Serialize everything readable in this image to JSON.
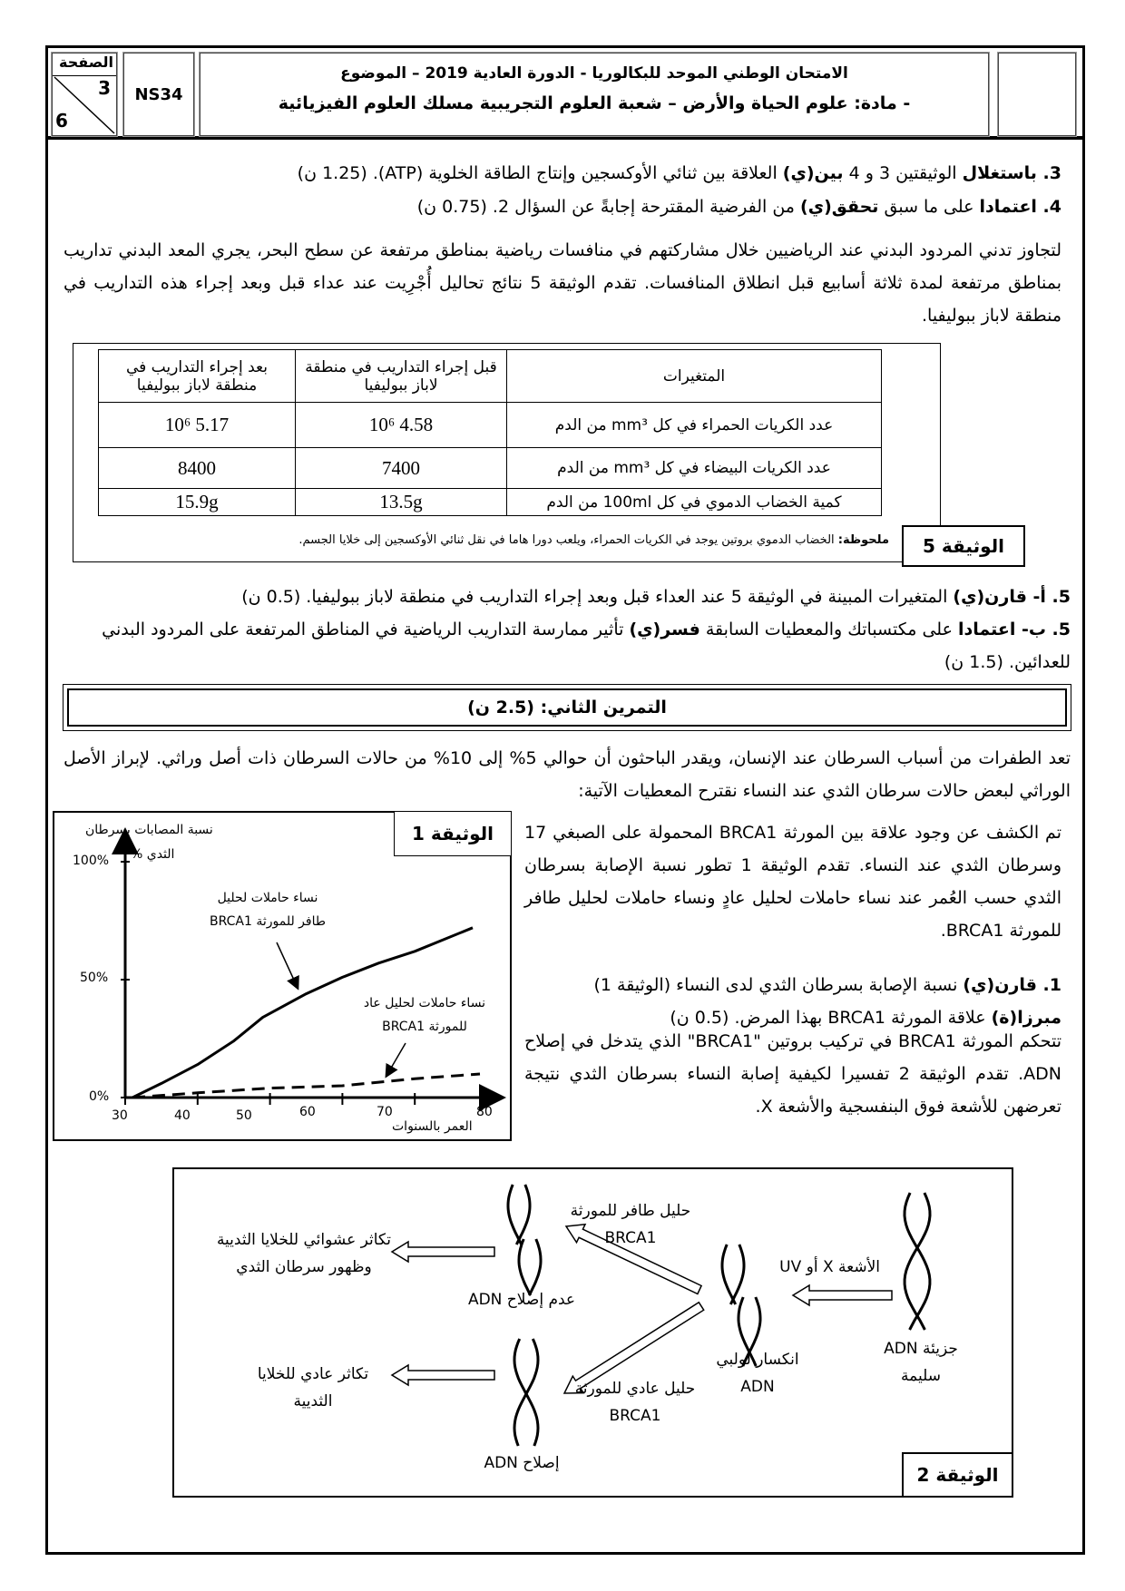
{
  "header": {
    "page_label": "الصفحة",
    "page_current": "3",
    "page_total": "6",
    "code": "NS34",
    "title_line1": "الامتحان الوطني الموحد للبكالوريا - الدورة العادية 2019 – الموضوع",
    "title_line2": "- مادة: علوم الحياة والأرض – شعبة العلوم التجريبية مسلك العلوم الفيزيائية"
  },
  "questions_top": {
    "q3": {
      "num": "3. باستغلال",
      "t1": " الوثيقتين 3 و 4 ",
      "verb": "بين(ي)",
      "t2": " العلاقة بين ثنائي الأوكسجين وإنتاج الطاقة الخلوية (ATP). (1.25 ن)"
    },
    "q4": {
      "num": "4. اعتمادا",
      "t1": " على ما سبق ",
      "verb": "تحقق(ي)",
      "t2": " من الفرضية المقترحة إجابةً عن السؤال 2. (0.75 ن)"
    }
  },
  "intro_doc5": "لتجاوز تدني المردود البدني عند الرياضيين خلال مشاركتهم في منافسات رياضية بمناطق مرتفعة عن سطح البحر، يجري المعد البدني تداريب بمناطق مرتفعة لمدة ثلاثة أسابيع قبل انطلاق المنافسات. تقدم الوثيقة 5 نتائج تحاليل أُجْرِيت عند عداء قبل وبعد إجراء هذه التداريب في منطقة لاباز ببوليفيا.",
  "doc5": {
    "label": "الوثيقة 5",
    "headers": [
      "المتغيرات",
      "قبل إجراء التداريب في منطقة لاباز ببوليفيا",
      "بعد إجراء التداريب في منطقة لاباز ببوليفيا"
    ],
    "rows": [
      [
        "عدد الكريات الحمراء في كل mm³ من الدم",
        "4.58 10⁶",
        "5.17 10⁶"
      ],
      [
        "عدد الكريات البيضاء في كل mm³ من الدم",
        "7400",
        "8400"
      ],
      [
        "كمية الخضاب الدموي في كل 100ml من الدم",
        "13.5g",
        "15.9g"
      ]
    ],
    "note_label": "ملحوظة:",
    "note_text": " الخضاب الدموي بروتين يوجد في الكريات الحمراء، ويلعب دورا هاما في نقل ثنائي الأوكسجين إلى خلايا الجسم."
  },
  "q5": {
    "a": {
      "num": "5. أ- قارن(ي)",
      "t1": " المتغيرات المبينة في الوثيقة 5 عند العداء قبل وبعد إجراء التداريب في منطقة لاباز ببوليفيا. (0.5 ن)"
    },
    "b": {
      "num": "5. ب- اعتمادا",
      "t1": " على مكتسباتك والمعطيات السابقة ",
      "verb": "فسر(ي)",
      "t2": " تأثير ممارسة التداريب الرياضية في المناطق المرتفعة على المردود البدني للعدائين. (1.5 ن)"
    }
  },
  "exercise2": {
    "title": "التمرين الثاني: (2.5 ن)",
    "intro": "تعد الطفرات من أسباب السرطان عند الإنسان، ويقدر الباحثون أن حوالي 5% إلى 10% من حالات السرطان ذات أصل وراثي. لإبراز الأصل الوراثي لبعض حالات سرطان الثدي عند النساء نقترح المعطيات الآتية:",
    "para1": "تم الكشف عن وجود علاقة بين المورثة BRCA1 المحمولة على الصبغي 17 وسرطان الثدي عند النساء. تقدم الوثيقة 1 تطور نسبة الإصابة بسرطان الثدي حسب العُمر عند نساء حاملات لحليل عادٍ ونساء حاملات لحليل طافر للمورثة BRCA1.",
    "q1": {
      "num": "1. قارن(ي)",
      "t1": " نسبة الإصابة بسرطان الثدي لدى النساء (الوثيقة 1) ",
      "verb": "مبرزا(ة)",
      "t2": " علاقة المورثة BRCA1 بهذا المرض. (0.5 ن)"
    },
    "para2": "تتحكم المورثة BRCA1 في تركيب بروتين \"BRCA1\" الذي يتدخل في إصلاح ADN. تقدم الوثيقة 2 تفسيرا لكيفية إصابة النساء بسرطان الثدي نتيجة تعرضهن للأشعة فوق البنفسجية والأشعة X."
  },
  "chart_data": {
    "type": "line",
    "doc_label": "الوثيقة 1",
    "ylabel_line1": "نسبة المصابات بسرطان",
    "ylabel_line2": "الثدي %",
    "xlabel": "العمر بالسنوات",
    "xlim": [
      30,
      80
    ],
    "ylim": [
      0,
      100
    ],
    "x_ticks": [
      "30",
      "40",
      "50",
      "60",
      "70",
      "80"
    ],
    "y_ticks": [
      "0%",
      "50%",
      "100%"
    ],
    "grid": false,
    "series": [
      {
        "name_line1": "نساء حاملات لحليل",
        "name_line2": "طافر للمورثة BRCA1",
        "style": "solid",
        "x": [
          31,
          35,
          40,
          45,
          49,
          55,
          60,
          65,
          70,
          78
        ],
        "y": [
          0,
          6,
          14,
          24,
          34,
          44,
          51,
          57,
          62,
          72
        ]
      },
      {
        "name_line1": "نساء حاملات لحليل عاد",
        "name_line2": "للمورثة BRCA1",
        "style": "dashed",
        "x": [
          31,
          40,
          50,
          60,
          65,
          70,
          79
        ],
        "y": [
          0,
          2,
          4,
          5,
          6.5,
          8,
          10
        ]
      }
    ]
  },
  "doc2": {
    "label": "الوثيقة 2",
    "healthy_dna": [
      "جزيئة ADN",
      "سليمة"
    ],
    "radiation": "الأشعة X أو UV",
    "broken_dna": [
      "انكسار لولبي",
      "ADN"
    ],
    "mutant_allele": [
      "حليل طافر للمورثة",
      "BRCA1"
    ],
    "no_repair": "عدم إصلاح ADN",
    "cancer": [
      "تكاثر عشوائي للخلايا الثديية",
      "وظهور سرطان الثدي"
    ],
    "normal_allele": [
      "حليل عادي للمورثة",
      "BRCA1"
    ],
    "repair": "إصلاح ADN",
    "normal_growth": [
      "تكاثر عادي للخلايا",
      "الثديية"
    ]
  }
}
